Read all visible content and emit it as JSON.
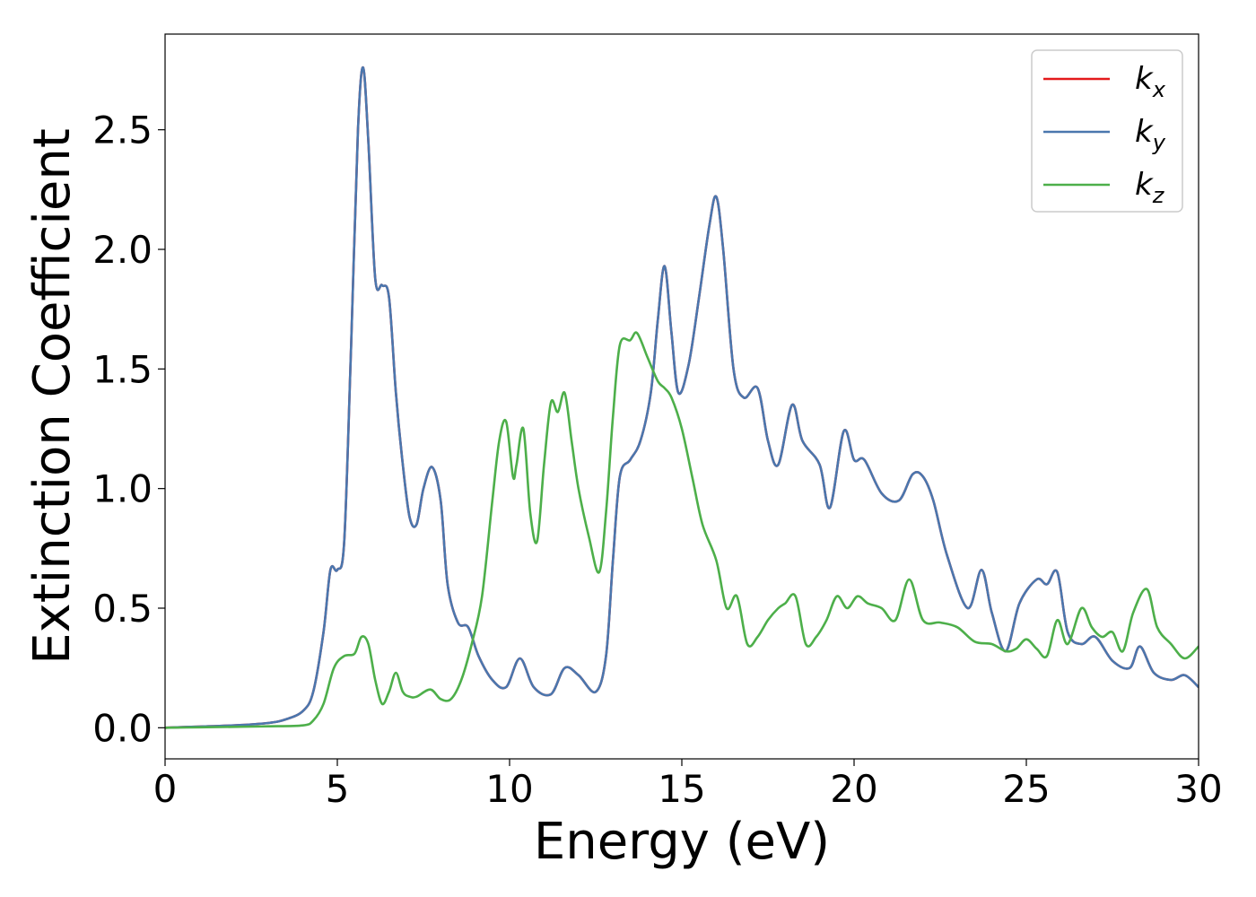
{
  "chart_data": {
    "type": "line",
    "xlabel": "Energy (eV)",
    "ylabel": "Extinction Coefficient",
    "xlim": [
      0,
      30
    ],
    "ylim": [
      -0.13,
      2.9
    ],
    "xticks": [
      0,
      5,
      10,
      15,
      20,
      25,
      30
    ],
    "xtick_labels": [
      "0",
      "5",
      "10",
      "15",
      "20",
      "25",
      "30"
    ],
    "yticks": [
      0.0,
      0.5,
      1.0,
      1.5,
      2.0,
      2.5
    ],
    "ytick_labels": [
      "0.0",
      "0.5",
      "1.0",
      "1.5",
      "2.0",
      "2.5"
    ],
    "grid": false,
    "legend_position": "top-right",
    "series": [
      {
        "name": "k_x",
        "legend_base": "k",
        "legend_sub": "x",
        "color": "#e41a1c",
        "x": [
          0,
          1,
          2,
          3,
          3.5,
          4,
          4.3,
          4.6,
          4.8,
          5,
          5.2,
          5.4,
          5.6,
          5.75,
          5.9,
          6.1,
          6.3,
          6.5,
          6.7,
          6.9,
          7.1,
          7.3,
          7.5,
          7.75,
          8,
          8.2,
          8.5,
          8.8,
          9.1,
          9.5,
          9.9,
          10.3,
          10.7,
          11.2,
          11.6,
          12,
          12.5,
          12.8,
          13,
          13.2,
          13.5,
          13.8,
          14.1,
          14.3,
          14.5,
          14.7,
          14.9,
          15.2,
          15.5,
          15.8,
          16,
          16.2,
          16.5,
          16.8,
          17.2,
          17.5,
          17.8,
          18.2,
          18.5,
          19,
          19.3,
          19.7,
          20,
          20.3,
          20.8,
          21.3,
          21.7,
          22,
          22.3,
          22.7,
          23.3,
          23.7,
          24,
          24.4,
          24.8,
          25.3,
          25.6,
          25.9,
          26.2,
          26.6,
          27,
          27.5,
          28,
          28.3,
          28.7,
          29.2,
          29.6,
          30
        ],
        "y": [
          0,
          0.005,
          0.01,
          0.02,
          0.035,
          0.07,
          0.15,
          0.4,
          0.66,
          0.66,
          0.78,
          1.6,
          2.5,
          2.76,
          2.45,
          1.88,
          1.85,
          1.8,
          1.4,
          1.1,
          0.88,
          0.85,
          1.0,
          1.09,
          0.95,
          0.6,
          0.44,
          0.42,
          0.3,
          0.2,
          0.17,
          0.29,
          0.17,
          0.14,
          0.25,
          0.22,
          0.15,
          0.3,
          0.7,
          1.05,
          1.12,
          1.2,
          1.4,
          1.7,
          1.93,
          1.65,
          1.4,
          1.52,
          1.8,
          2.1,
          2.22,
          2.0,
          1.5,
          1.38,
          1.42,
          1.2,
          1.1,
          1.35,
          1.2,
          1.1,
          0.92,
          1.24,
          1.12,
          1.12,
          0.98,
          0.95,
          1.06,
          1.05,
          0.95,
          0.72,
          0.5,
          0.66,
          0.48,
          0.32,
          0.52,
          0.62,
          0.6,
          0.65,
          0.4,
          0.35,
          0.38,
          0.28,
          0.25,
          0.34,
          0.23,
          0.2,
          0.22,
          0.17
        ]
      },
      {
        "name": "k_y",
        "legend_base": "k",
        "legend_sub": "y",
        "color": "#4a77ae",
        "x": [
          0,
          1,
          2,
          3,
          3.5,
          4,
          4.3,
          4.6,
          4.8,
          5,
          5.2,
          5.4,
          5.6,
          5.75,
          5.9,
          6.1,
          6.3,
          6.5,
          6.7,
          6.9,
          7.1,
          7.3,
          7.5,
          7.75,
          8,
          8.2,
          8.5,
          8.8,
          9.1,
          9.5,
          9.9,
          10.3,
          10.7,
          11.2,
          11.6,
          12,
          12.5,
          12.8,
          13,
          13.2,
          13.5,
          13.8,
          14.1,
          14.3,
          14.5,
          14.7,
          14.9,
          15.2,
          15.5,
          15.8,
          16,
          16.2,
          16.5,
          16.8,
          17.2,
          17.5,
          17.8,
          18.2,
          18.5,
          19,
          19.3,
          19.7,
          20,
          20.3,
          20.8,
          21.3,
          21.7,
          22,
          22.3,
          22.7,
          23.3,
          23.7,
          24,
          24.4,
          24.8,
          25.3,
          25.6,
          25.9,
          26.2,
          26.6,
          27,
          27.5,
          28,
          28.3,
          28.7,
          29.2,
          29.6,
          30
        ],
        "y": [
          0,
          0.005,
          0.01,
          0.02,
          0.035,
          0.07,
          0.15,
          0.4,
          0.66,
          0.66,
          0.78,
          1.6,
          2.5,
          2.76,
          2.45,
          1.88,
          1.85,
          1.8,
          1.4,
          1.1,
          0.88,
          0.85,
          1.0,
          1.09,
          0.95,
          0.6,
          0.44,
          0.42,
          0.3,
          0.2,
          0.17,
          0.29,
          0.17,
          0.14,
          0.25,
          0.22,
          0.15,
          0.3,
          0.7,
          1.05,
          1.12,
          1.2,
          1.4,
          1.7,
          1.93,
          1.65,
          1.4,
          1.52,
          1.8,
          2.1,
          2.22,
          2.0,
          1.5,
          1.38,
          1.42,
          1.2,
          1.1,
          1.35,
          1.2,
          1.1,
          0.92,
          1.24,
          1.12,
          1.12,
          0.98,
          0.95,
          1.06,
          1.05,
          0.95,
          0.72,
          0.5,
          0.66,
          0.48,
          0.32,
          0.52,
          0.62,
          0.6,
          0.65,
          0.4,
          0.35,
          0.38,
          0.28,
          0.25,
          0.34,
          0.23,
          0.2,
          0.22,
          0.17
        ]
      },
      {
        "name": "k_z",
        "legend_base": "k",
        "legend_sub": "z",
        "color": "#4daf4a",
        "x": [
          0,
          1,
          2,
          3,
          4,
          4.3,
          4.6,
          4.9,
          5.2,
          5.5,
          5.7,
          5.9,
          6.1,
          6.3,
          6.5,
          6.7,
          6.9,
          7.1,
          7.3,
          7.7,
          8,
          8.3,
          8.6,
          8.9,
          9.2,
          9.5,
          9.7,
          9.9,
          10.1,
          10.2,
          10.4,
          10.6,
          10.8,
          11,
          11.2,
          11.4,
          11.6,
          11.8,
          12,
          12.3,
          12.6,
          12.8,
          13,
          13.2,
          13.5,
          13.7,
          14,
          14.3,
          14.5,
          14.7,
          15,
          15.3,
          15.6,
          16,
          16.3,
          16.6,
          16.9,
          17.2,
          17.5,
          17.8,
          18,
          18.3,
          18.6,
          18.9,
          19.2,
          19.5,
          19.8,
          20.1,
          20.4,
          20.8,
          21.2,
          21.6,
          22,
          22.5,
          23,
          23.5,
          24,
          24.4,
          24.7,
          25,
          25.3,
          25.6,
          25.9,
          26.2,
          26.6,
          26.9,
          27.2,
          27.5,
          27.8,
          28.1,
          28.5,
          28.8,
          29.2,
          29.6,
          30
        ],
        "y": [
          0,
          0.002,
          0.004,
          0.006,
          0.01,
          0.03,
          0.1,
          0.25,
          0.3,
          0.31,
          0.38,
          0.35,
          0.2,
          0.1,
          0.15,
          0.23,
          0.15,
          0.13,
          0.13,
          0.16,
          0.12,
          0.12,
          0.2,
          0.35,
          0.55,
          0.95,
          1.2,
          1.28,
          1.05,
          1.1,
          1.25,
          0.9,
          0.78,
          1.1,
          1.36,
          1.32,
          1.4,
          1.2,
          1.0,
          0.8,
          0.65,
          0.9,
          1.3,
          1.6,
          1.62,
          1.65,
          1.55,
          1.45,
          1.42,
          1.38,
          1.25,
          1.05,
          0.85,
          0.7,
          0.5,
          0.55,
          0.35,
          0.38,
          0.45,
          0.5,
          0.52,
          0.55,
          0.35,
          0.38,
          0.45,
          0.55,
          0.5,
          0.55,
          0.52,
          0.5,
          0.45,
          0.62,
          0.45,
          0.44,
          0.42,
          0.36,
          0.35,
          0.32,
          0.33,
          0.37,
          0.33,
          0.3,
          0.45,
          0.35,
          0.5,
          0.42,
          0.38,
          0.4,
          0.32,
          0.48,
          0.58,
          0.42,
          0.35,
          0.29,
          0.34
        ]
      }
    ]
  }
}
